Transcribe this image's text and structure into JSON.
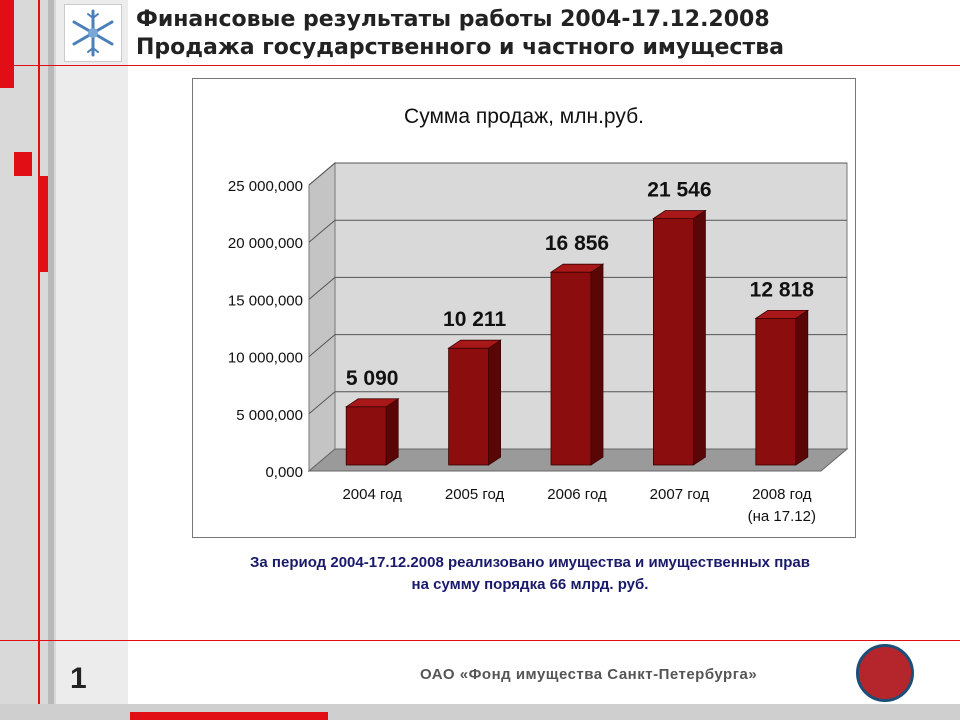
{
  "slide": {
    "title_line1": "Финансовые результаты работы 2004-17.12.2008",
    "title_line2": "Продажа государственного и частного имущества",
    "caption_line1": "За период 2004-17.12.2008 реализовано имущества и имущественных прав",
    "caption_line2": "на сумму порядка 66 млрд. руб.",
    "page_number": "1",
    "footer_org": "ОАО «Фонд имущества Санкт-Петербурга»"
  },
  "colors": {
    "bar_front": "#8b0d0d",
    "bar_side": "#5a0606",
    "bar_top": "#a81818",
    "accent_red": "#e20e16",
    "wall": "#d9d9d9",
    "floor": "#9a9a9a"
  },
  "chart_data": {
    "type": "bar",
    "title": "Сумма продаж, млн.руб.",
    "categories": [
      "2004 год",
      "2005 год",
      "2006 год",
      "2007 год",
      "2008 год"
    ],
    "category_notes": [
      "",
      "",
      "",
      "",
      "(на 17.12)"
    ],
    "values": [
      5090,
      10211,
      16856,
      21546,
      12818
    ],
    "data_labels": [
      "5 090",
      "10 211",
      "16 856",
      "21 546",
      "12 818"
    ],
    "y_ticks": [
      "0,000",
      "5 000,000",
      "10 000,000",
      "15 000,000",
      "20 000,000",
      "25 000,000"
    ],
    "ylim": [
      0,
      25000
    ],
    "grid": true,
    "legend": "none",
    "style": "3d"
  }
}
